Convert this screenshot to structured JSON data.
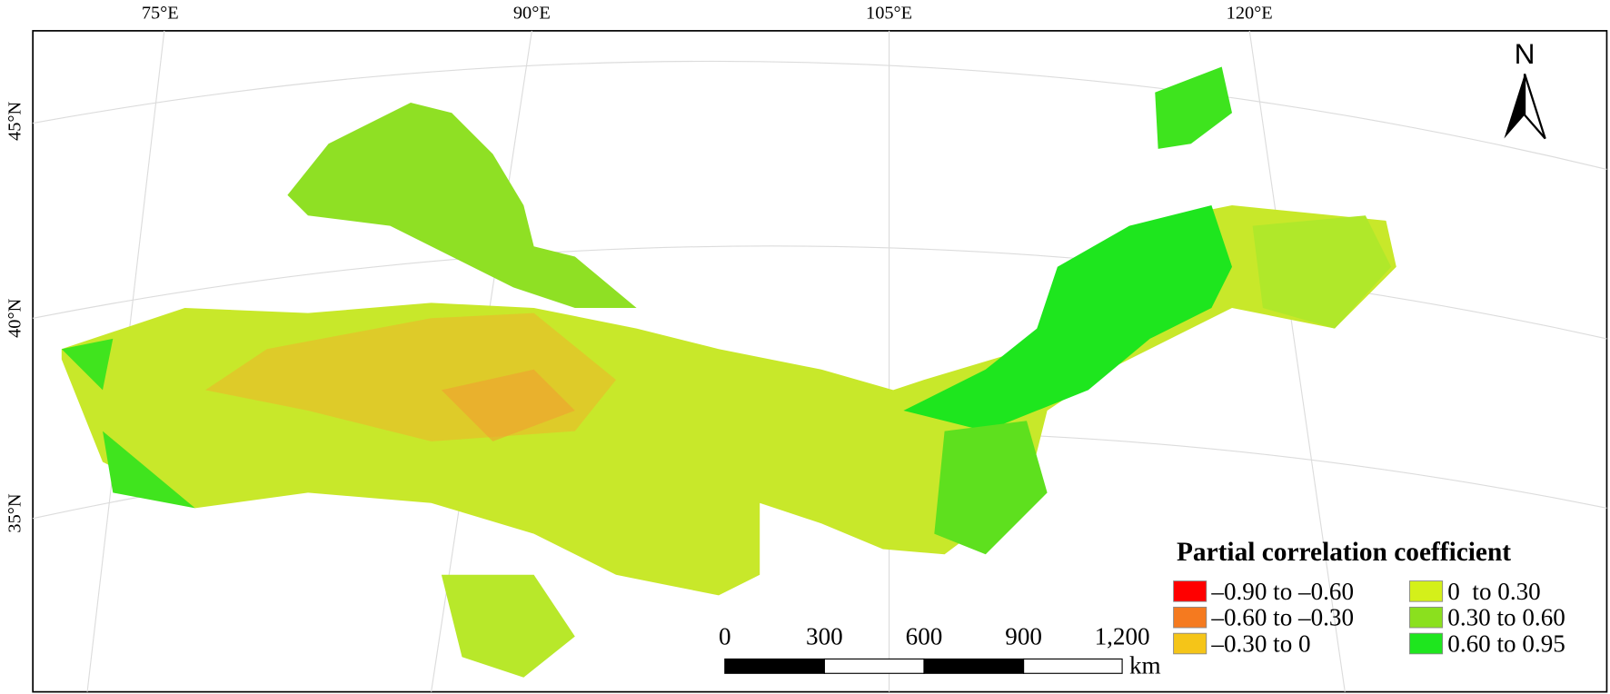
{
  "map": {
    "longitude_labels": [
      "75°E",
      "90°E",
      "105°E",
      "120°E"
    ],
    "latitude_labels": [
      "45°N",
      "40°N",
      "35°N"
    ],
    "north_label": "N",
    "legend": {
      "title": "Partial correlation coefficient",
      "items": [
        {
          "label": "–0.90 to –0.60",
          "color": "#ff0000"
        },
        {
          "label": "–0.60 to –0.30",
          "color": "#f57a1f"
        },
        {
          "label": "–0.30 to 0",
          "color": "#f5c518"
        },
        {
          "label": "0  to 0.30",
          "color": "#d4f01a"
        },
        {
          "label": "0.30 to 0.60",
          "color": "#8be01e"
        },
        {
          "label": "0.60 to 0.95",
          "color": "#1ee61e"
        }
      ]
    },
    "scale_bar": {
      "labels": [
        "0",
        "300",
        "600",
        "900",
        "1,200"
      ],
      "unit": "km"
    }
  }
}
